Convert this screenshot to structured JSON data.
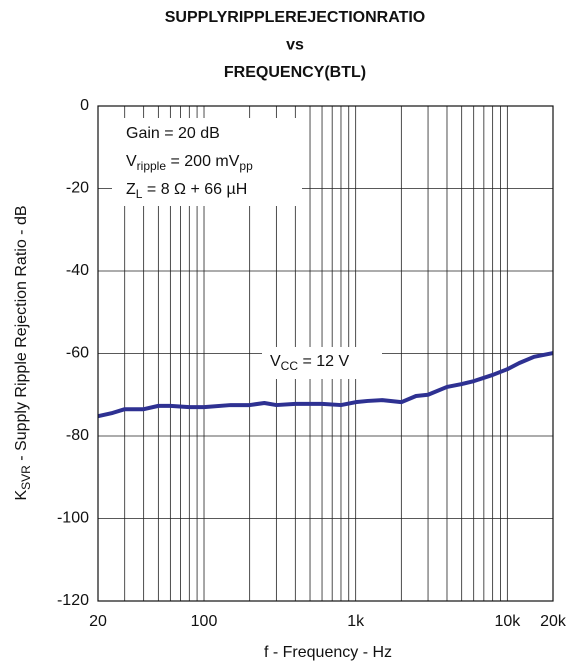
{
  "chart_data": {
    "type": "line",
    "title": [
      "SUPPLYRIPPLEREJECTIONRATIO",
      "vs",
      "FREQUENCY(BTL)"
    ],
    "x_label": "f - Frequency - Hz",
    "y_label": [
      {
        "text": "K"
      },
      {
        "sub": "SVR"
      },
      {
        "text": " - Supply Ripple Rejection Ratio - dB"
      }
    ],
    "annotations": [
      [
        {
          "text": "Gain = 20 dB"
        }
      ],
      [
        {
          "text": "V"
        },
        {
          "sub": "ripple"
        },
        {
          "text": " = 200 mV"
        },
        {
          "sub": "pp"
        }
      ],
      [
        {
          "text": "Z"
        },
        {
          "sub": "L"
        },
        {
          "text": " = 8 Ω + 66 µH"
        }
      ]
    ],
    "x_scale": "log",
    "xlim": [
      20,
      20000
    ],
    "xticks": [
      20,
      100,
      {
        "value": 1000,
        "label": "1k"
      },
      {
        "value": 10000,
        "label": "10k"
      },
      {
        "value": 20000,
        "label": "20k"
      }
    ],
    "xminor": [
      30,
      40,
      50,
      60,
      70,
      80,
      90,
      200,
      300,
      400,
      500,
      600,
      700,
      800,
      900,
      2000,
      3000,
      4000,
      5000,
      6000,
      7000,
      8000,
      9000
    ],
    "ylim": [
      -120,
      0
    ],
    "yticks": [
      -120,
      -100,
      -80,
      -60,
      -40,
      -20,
      0
    ],
    "grid": true,
    "x": [
      20,
      25,
      30,
      40,
      50,
      60,
      80,
      100,
      150,
      200,
      250,
      300,
      400,
      500,
      600,
      800,
      1000,
      1200,
      1500,
      2000,
      2500,
      3000,
      4000,
      5000,
      6000,
      8000,
      10000,
      12000,
      15000,
      20000
    ],
    "series": [
      {
        "name": [
          {
            "text": "V"
          },
          {
            "sub": "CC"
          },
          {
            "text": " = 12 V"
          }
        ],
        "color": "#2e3192",
        "values": [
          -75.2,
          -74.4,
          -73.5,
          -73.5,
          -72.7,
          -72.7,
          -73,
          -73,
          -72.5,
          -72.5,
          -72,
          -72.5,
          -72.2,
          -72.2,
          -72.2,
          -72.5,
          -71.8,
          -71.5,
          -71.3,
          -71.8,
          -70.3,
          -70,
          -68.1,
          -67.4,
          -66.7,
          -65.2,
          -63.8,
          -62.3,
          -60.8,
          -59.9
        ]
      }
    ]
  }
}
